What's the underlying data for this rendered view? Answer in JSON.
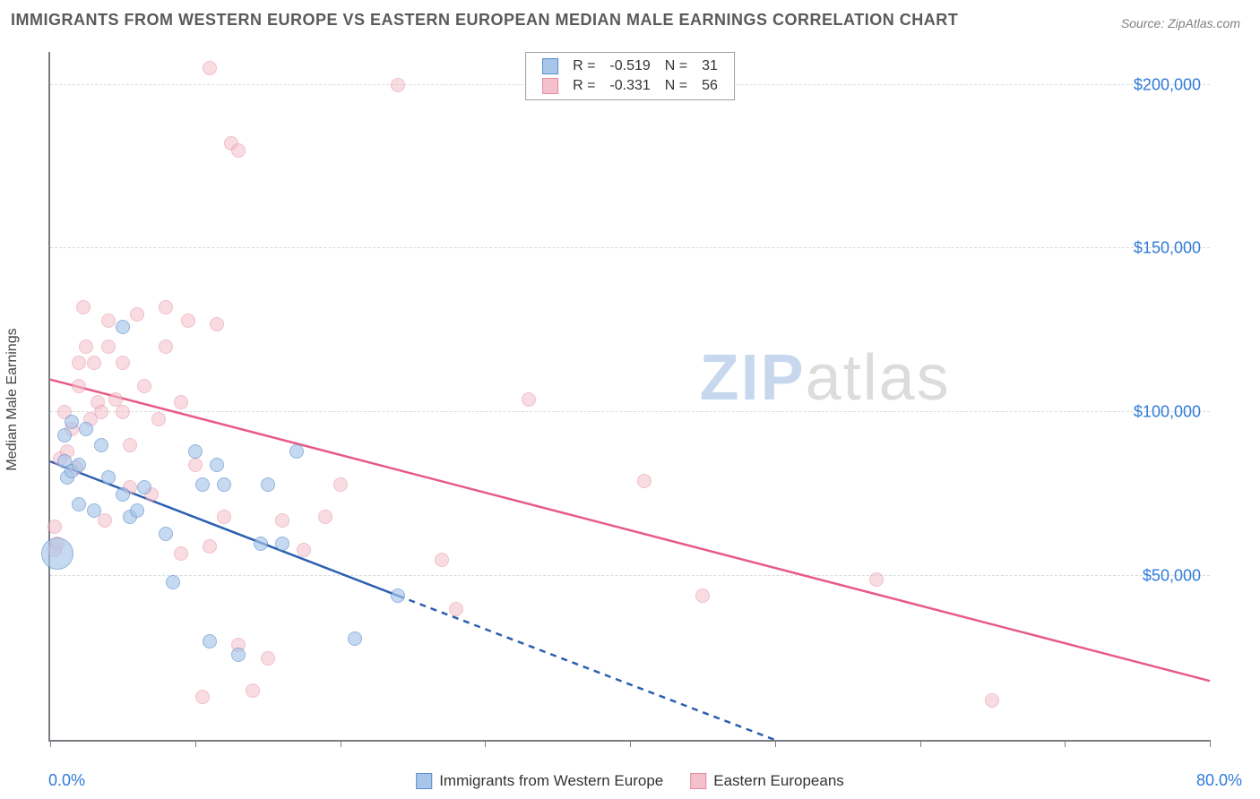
{
  "title": "IMMIGRANTS FROM WESTERN EUROPE VS EASTERN EUROPEAN MEDIAN MALE EARNINGS CORRELATION CHART",
  "source_label": "Source: ZipAtlas.com",
  "ylabel": "Median Male Earnings",
  "watermark": {
    "part1": "ZIP",
    "part2": "atlas"
  },
  "chart": {
    "type": "scatter-with-regression",
    "background_color": "#ffffff",
    "axis_color": "#7a7d82",
    "grid_color": "#d6dbe0",
    "xlim": [
      0,
      80
    ],
    "ylim": [
      0,
      210000
    ],
    "x_tick_positions": [
      0,
      10,
      20,
      30,
      40,
      50,
      60,
      70,
      80
    ],
    "x_tick_labels_shown": {
      "0": "0.0%",
      "80": "80.0%"
    },
    "y_gridlines": [
      50000,
      100000,
      150000,
      200000
    ],
    "y_tick_labels": {
      "50000": "$50,000",
      "100000": "$100,000",
      "150000": "$150,000",
      "200000": "$200,000"
    },
    "tick_label_color": "#2f7bd9",
    "tick_label_fontsize": 18
  },
  "series": {
    "blue": {
      "label": "Immigrants from Western Europe",
      "fill": "#a7c6ea",
      "stroke": "#5b8fca",
      "fill_opacity": 0.65,
      "R": "-0.519",
      "N": "31",
      "regression": {
        "solid": {
          "x1": 0,
          "y1": 85000,
          "x2": 24,
          "y2": 44000
        },
        "dashed": {
          "x1": 24,
          "y1": 44000,
          "x2": 50,
          "y2": 0
        },
        "line_color": "#2b5fb0",
        "line_width": 2.5
      },
      "marker_radius": 8,
      "points": [
        {
          "x": 0.5,
          "y": 57000,
          "r": 18
        },
        {
          "x": 1.0,
          "y": 93000
        },
        {
          "x": 1.0,
          "y": 85000
        },
        {
          "x": 1.2,
          "y": 80000
        },
        {
          "x": 1.5,
          "y": 82000
        },
        {
          "x": 1.5,
          "y": 97000
        },
        {
          "x": 2.0,
          "y": 72000
        },
        {
          "x": 2.0,
          "y": 84000
        },
        {
          "x": 2.5,
          "y": 95000
        },
        {
          "x": 3.0,
          "y": 70000
        },
        {
          "x": 3.5,
          "y": 90000
        },
        {
          "x": 4.0,
          "y": 80000
        },
        {
          "x": 5.0,
          "y": 126000
        },
        {
          "x": 5.0,
          "y": 75000
        },
        {
          "x": 5.5,
          "y": 68000
        },
        {
          "x": 6.0,
          "y": 70000
        },
        {
          "x": 6.5,
          "y": 77000
        },
        {
          "x": 8.0,
          "y": 63000
        },
        {
          "x": 8.5,
          "y": 48000
        },
        {
          "x": 10.0,
          "y": 88000
        },
        {
          "x": 10.5,
          "y": 78000
        },
        {
          "x": 11.0,
          "y": 30000
        },
        {
          "x": 11.5,
          "y": 84000
        },
        {
          "x": 12.0,
          "y": 78000
        },
        {
          "x": 13.0,
          "y": 26000
        },
        {
          "x": 14.5,
          "y": 60000
        },
        {
          "x": 15.0,
          "y": 78000
        },
        {
          "x": 16.0,
          "y": 60000
        },
        {
          "x": 17.0,
          "y": 88000
        },
        {
          "x": 21.0,
          "y": 31000
        },
        {
          "x": 24.0,
          "y": 44000
        }
      ]
    },
    "pink": {
      "label": "Eastern Europeans",
      "fill": "#f4c0cc",
      "stroke": "#e78aa2",
      "fill_opacity": 0.55,
      "R": "-0.331",
      "N": "56",
      "regression": {
        "solid": {
          "x1": 0,
          "y1": 110000,
          "x2": 80,
          "y2": 18000
        },
        "line_color": "#e75a89",
        "line_width": 2.5
      },
      "marker_radius": 8,
      "points": [
        {
          "x": 0.3,
          "y": 65000
        },
        {
          "x": 0.3,
          "y": 58000
        },
        {
          "x": 0.5,
          "y": 60000
        },
        {
          "x": 0.7,
          "y": 86000
        },
        {
          "x": 1.0,
          "y": 100000
        },
        {
          "x": 1.2,
          "y": 88000
        },
        {
          "x": 1.5,
          "y": 95000
        },
        {
          "x": 1.8,
          "y": 83000
        },
        {
          "x": 2.0,
          "y": 115000
        },
        {
          "x": 2.0,
          "y": 108000
        },
        {
          "x": 2.3,
          "y": 132000
        },
        {
          "x": 2.5,
          "y": 120000
        },
        {
          "x": 2.8,
          "y": 98000
        },
        {
          "x": 3.0,
          "y": 115000
        },
        {
          "x": 3.3,
          "y": 103000
        },
        {
          "x": 3.5,
          "y": 100000
        },
        {
          "x": 3.8,
          "y": 67000
        },
        {
          "x": 4.0,
          "y": 128000
        },
        {
          "x": 4.0,
          "y": 120000
        },
        {
          "x": 4.5,
          "y": 104000
        },
        {
          "x": 5.0,
          "y": 115000
        },
        {
          "x": 5.0,
          "y": 100000
        },
        {
          "x": 5.5,
          "y": 77000
        },
        {
          "x": 5.5,
          "y": 90000
        },
        {
          "x": 6.0,
          "y": 130000
        },
        {
          "x": 6.5,
          "y": 108000
        },
        {
          "x": 7.0,
          "y": 75000
        },
        {
          "x": 7.5,
          "y": 98000
        },
        {
          "x": 8.0,
          "y": 120000
        },
        {
          "x": 8.0,
          "y": 132000
        },
        {
          "x": 9.0,
          "y": 103000
        },
        {
          "x": 9.0,
          "y": 57000
        },
        {
          "x": 9.5,
          "y": 128000
        },
        {
          "x": 10.0,
          "y": 84000
        },
        {
          "x": 10.5,
          "y": 13000
        },
        {
          "x": 11.0,
          "y": 205000
        },
        {
          "x": 11.0,
          "y": 59000
        },
        {
          "x": 11.5,
          "y": 127000
        },
        {
          "x": 12.0,
          "y": 68000
        },
        {
          "x": 12.5,
          "y": 182000
        },
        {
          "x": 13.0,
          "y": 180000
        },
        {
          "x": 13.0,
          "y": 29000
        },
        {
          "x": 14.0,
          "y": 15000
        },
        {
          "x": 15.0,
          "y": 25000
        },
        {
          "x": 16.0,
          "y": 67000
        },
        {
          "x": 17.5,
          "y": 58000
        },
        {
          "x": 19.0,
          "y": 68000
        },
        {
          "x": 20.0,
          "y": 78000
        },
        {
          "x": 24.0,
          "y": 200000
        },
        {
          "x": 27.0,
          "y": 55000
        },
        {
          "x": 28.0,
          "y": 40000
        },
        {
          "x": 33.0,
          "y": 104000
        },
        {
          "x": 41.0,
          "y": 79000
        },
        {
          "x": 45.0,
          "y": 44000
        },
        {
          "x": 57.0,
          "y": 49000
        },
        {
          "x": 65.0,
          "y": 12000
        }
      ]
    }
  },
  "legend_top": {
    "cols": [
      "swatch",
      "R =",
      "R_val",
      "N =",
      "N_val"
    ]
  }
}
